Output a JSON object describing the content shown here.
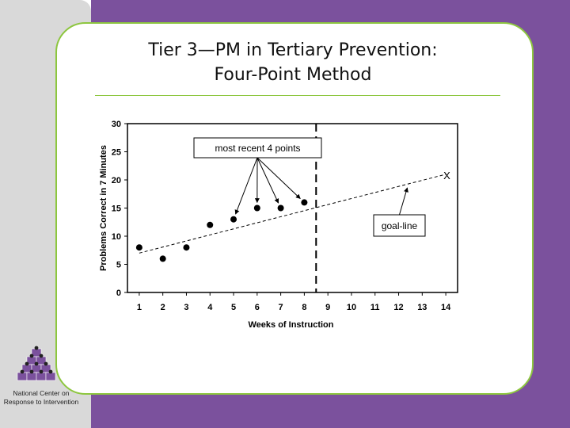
{
  "slide": {
    "title_line1": "Tier 3—PM in Tertiary Prevention:",
    "title_line2": "Four-Point Method"
  },
  "logo": {
    "caption": "National Center on Response to Intervention",
    "icon": "stacked-cubes-logo-icon"
  },
  "colors": {
    "purple": "#7b519d",
    "green": "#8dc63f",
    "grey": "#d9d9d9"
  },
  "chart_data": {
    "type": "scatter",
    "title": "",
    "xlabel": "Weeks of Instruction",
    "ylabel": "Problems Correct in 7 Minutes",
    "xlim": [
      0.5,
      14.5
    ],
    "ylim": [
      0,
      30
    ],
    "x_ticks": [
      "1",
      "2",
      "3",
      "4",
      "5",
      "6",
      "7",
      "8",
      "9",
      "10",
      "11",
      "12",
      "13",
      "14"
    ],
    "y_ticks": [
      "0",
      "5",
      "10",
      "15",
      "20",
      "25",
      "30"
    ],
    "grid": false,
    "points": [
      {
        "x": 1,
        "y": 8
      },
      {
        "x": 2,
        "y": 6
      },
      {
        "x": 3,
        "y": 8
      },
      {
        "x": 4,
        "y": 12
      },
      {
        "x": 5,
        "y": 13
      },
      {
        "x": 6,
        "y": 15
      },
      {
        "x": 7,
        "y": 15
      },
      {
        "x": 8,
        "y": 16
      }
    ],
    "goal_line": {
      "x": [
        1,
        14
      ],
      "y": [
        7,
        21
      ],
      "end_marker": "X",
      "style": "dashed"
    },
    "phase_line": {
      "x": 8.5,
      "style": "dashed"
    },
    "annotations": {
      "recent_points": {
        "text": "most recent 4 points",
        "targets": [
          5,
          6,
          7,
          8
        ]
      },
      "goal_line": {
        "text": "goal-line",
        "target_x": 12.3
      }
    }
  }
}
